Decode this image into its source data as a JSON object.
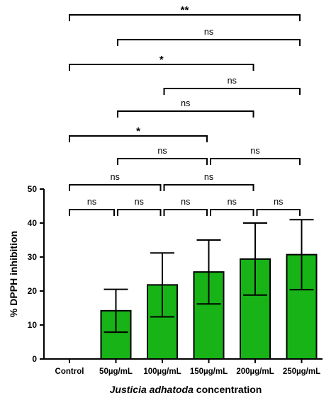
{
  "chart_data": {
    "type": "bar",
    "categories": [
      "Control",
      "50µg/mL",
      "100µg/mL",
      "150µg/mL",
      "200µg/mL",
      "250µg/mL"
    ],
    "values": [
      0,
      14.2,
      21.8,
      25.6,
      29.4,
      30.7
    ],
    "error": [
      0,
      6.3,
      9.4,
      9.4,
      10.6,
      10.3
    ],
    "ylabel": "% DPPH inhibition",
    "xlabel_italic": "Justicia adhatoda",
    "xlabel_rest": " concentration",
    "ylim": [
      0,
      50
    ],
    "yticks": [
      0,
      10,
      20,
      30,
      40,
      50
    ],
    "bar_color": "#17b317",
    "comparisons": [
      {
        "from": 0,
        "to": 1,
        "label": "ns",
        "level": 0
      },
      {
        "from": 1,
        "to": 2,
        "label": "ns",
        "level": 0
      },
      {
        "from": 2,
        "to": 3,
        "label": "ns",
        "level": 0
      },
      {
        "from": 3,
        "to": 4,
        "label": "ns",
        "level": 0
      },
      {
        "from": 4,
        "to": 5,
        "label": "ns",
        "level": 0
      },
      {
        "from": 0,
        "to": 2,
        "label": "ns",
        "level": 1
      },
      {
        "from": 2,
        "to": 4,
        "label": "ns",
        "level": 1
      },
      {
        "from": 1,
        "to": 3,
        "label": "ns",
        "level": 2
      },
      {
        "from": 3,
        "to": 5,
        "label": "ns",
        "level": 2
      },
      {
        "from": 0,
        "to": 3,
        "label": "*",
        "level": 3
      },
      {
        "from": 1,
        "to": 4,
        "label": "ns",
        "level": 4
      },
      {
        "from": 2,
        "to": 5,
        "label": "ns",
        "level": 5
      },
      {
        "from": 0,
        "to": 4,
        "label": "*",
        "level": 6
      },
      {
        "from": 1,
        "to": 5,
        "label": "ns",
        "level": 7
      },
      {
        "from": 0,
        "to": 5,
        "label": "**",
        "level": 8
      }
    ]
  }
}
